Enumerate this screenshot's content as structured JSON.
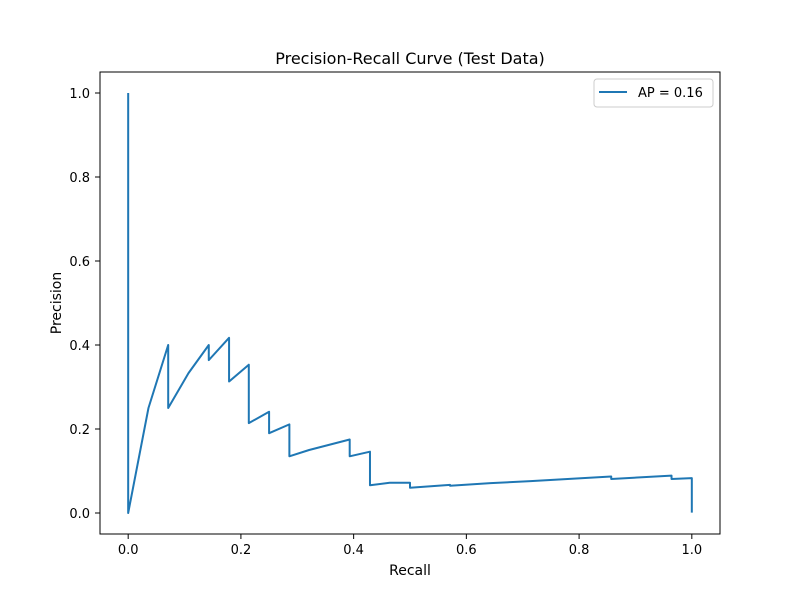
{
  "chart_data": {
    "type": "line",
    "title": "Precision-Recall Curve (Test Data)",
    "xlabel": "Recall",
    "ylabel": "Precision",
    "xlim": [
      -0.05,
      1.05
    ],
    "ylim": [
      -0.05,
      1.05
    ],
    "xticks": [
      0.0,
      0.2,
      0.4,
      0.6,
      0.8,
      1.0
    ],
    "xtick_labels": [
      "0.0",
      "0.2",
      "0.4",
      "0.6",
      "0.8",
      "1.0"
    ],
    "yticks": [
      0.0,
      0.2,
      0.4,
      0.6,
      0.8,
      1.0
    ],
    "ytick_labels": [
      "0.0",
      "0.2",
      "0.4",
      "0.6",
      "0.8",
      "1.0"
    ],
    "grid": false,
    "legend_position": "upper right",
    "series": [
      {
        "name": "AP = 0.16",
        "color": "#1f77b4",
        "x": [
          0.0,
          0.0,
          0.0,
          0.036,
          0.071,
          0.071,
          0.107,
          0.143,
          0.143,
          0.179,
          0.179,
          0.214,
          0.214,
          0.25,
          0.25,
          0.286,
          0.286,
          0.321,
          0.393,
          0.393,
          0.429,
          0.429,
          0.464,
          0.5,
          0.5,
          0.571,
          0.571,
          0.643,
          0.714,
          0.857,
          0.857,
          0.964,
          0.964,
          1.0,
          1.0
        ],
        "y": [
          1.0,
          0.0,
          0.0,
          0.25,
          0.4,
          0.25,
          0.333,
          0.4,
          0.364,
          0.417,
          0.313,
          0.353,
          0.214,
          0.241,
          0.19,
          0.211,
          0.135,
          0.15,
          0.175,
          0.135,
          0.146,
          0.066,
          0.072,
          0.072,
          0.06,
          0.067,
          0.065,
          0.071,
          0.076,
          0.087,
          0.081,
          0.089,
          0.081,
          0.083,
          0.001
        ]
      }
    ]
  }
}
